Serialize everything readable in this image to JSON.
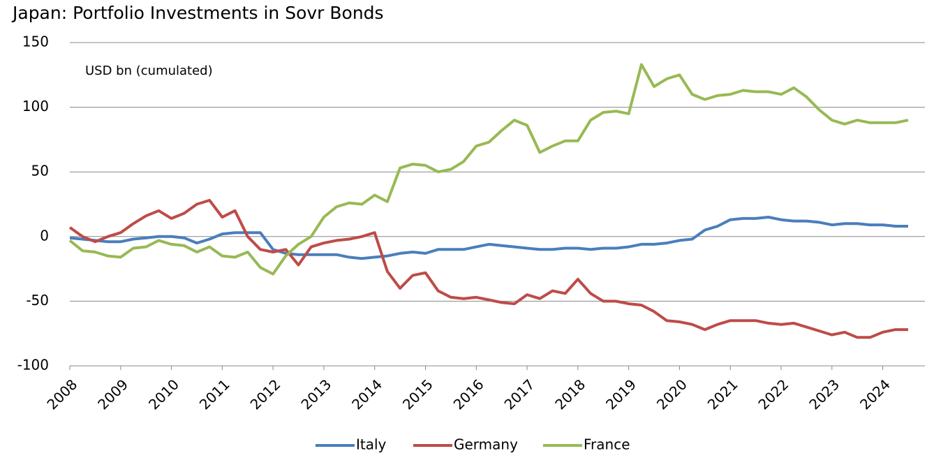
{
  "chart_data": {
    "type": "line",
    "title": "Japan: Portfolio Investments in Sovr Bonds",
    "annotation": "USD bn (cumulated)",
    "x": [
      2008,
      2008.25,
      2008.5,
      2008.75,
      2009,
      2009.25,
      2009.5,
      2009.75,
      2010,
      2010.25,
      2010.5,
      2010.75,
      2011,
      2011.25,
      2011.5,
      2011.75,
      2012,
      2012.25,
      2012.5,
      2012.75,
      2013,
      2013.25,
      2013.5,
      2013.75,
      2014,
      2014.25,
      2014.5,
      2014.75,
      2015,
      2015.25,
      2015.5,
      2015.75,
      2016,
      2016.25,
      2016.5,
      2016.75,
      2017,
      2017.25,
      2017.5,
      2017.75,
      2018,
      2018.25,
      2018.5,
      2018.75,
      2019,
      2019.25,
      2019.5,
      2019.75,
      2020,
      2020.25,
      2020.5,
      2020.75,
      2021,
      2021.25,
      2021.5,
      2021.75,
      2022,
      2022.25,
      2022.5,
      2022.75,
      2023,
      2023.25,
      2023.5,
      2023.75,
      2024,
      2024.25,
      2024.5
    ],
    "series": [
      {
        "name": "Italy",
        "color": "#4a7ebb",
        "values": [
          -1,
          -2,
          -3,
          -4,
          -4,
          -2,
          -1,
          0,
          0,
          -1,
          -5,
          -2,
          2,
          3,
          3,
          3,
          -10,
          -13,
          -14,
          -14,
          -14,
          -14,
          -16,
          -17,
          -16,
          -15,
          -13,
          -12,
          -13,
          -10,
          -10,
          -10,
          -8,
          -6,
          -7,
          -8,
          -9,
          -10,
          -10,
          -9,
          -9,
          -10,
          -9,
          -9,
          -8,
          -6,
          -6,
          -5,
          -3,
          -2,
          5,
          8,
          13,
          14,
          14,
          15,
          13,
          12,
          12,
          11,
          9,
          10,
          10,
          9,
          9,
          8,
          8
        ]
      },
      {
        "name": "Germany",
        "color": "#be4b48",
        "values": [
          7,
          0,
          -4,
          0,
          3,
          10,
          16,
          20,
          14,
          18,
          25,
          28,
          15,
          20,
          0,
          -10,
          -12,
          -10,
          -22,
          -8,
          -5,
          -3,
          -2,
          0,
          3,
          -27,
          -40,
          -30,
          -28,
          -42,
          -47,
          -48,
          -47,
          -49,
          -51,
          -52,
          -45,
          -48,
          -42,
          -44,
          -33,
          -44,
          -50,
          -50,
          -52,
          -53,
          -58,
          -65,
          -66,
          -68,
          -72,
          -68,
          -65,
          -65,
          -65,
          -67,
          -68,
          -67,
          -70,
          -73,
          -76,
          -74,
          -78,
          -78,
          -74,
          -72,
          -72
        ]
      },
      {
        "name": "France",
        "color": "#98b954",
        "values": [
          -3,
          -11,
          -12,
          -15,
          -16,
          -9,
          -8,
          -3,
          -6,
          -7,
          -12,
          -8,
          -15,
          -16,
          -12,
          -24,
          -29,
          -15,
          -6,
          0,
          15,
          23,
          26,
          25,
          32,
          27,
          53,
          56,
          55,
          50,
          52,
          58,
          70,
          73,
          82,
          90,
          86,
          65,
          70,
          74,
          74,
          90,
          96,
          97,
          95,
          133,
          116,
          122,
          125,
          110,
          106,
          109,
          110,
          113,
          112,
          112,
          110,
          115,
          108,
          98,
          90,
          87,
          90,
          88,
          88,
          88,
          90
        ]
      }
    ],
    "xlim": [
      2008,
      2024.83
    ],
    "xticks": [
      2008,
      2009,
      2010,
      2011,
      2012,
      2013,
      2014,
      2015,
      2016,
      2017,
      2018,
      2019,
      2020,
      2021,
      2022,
      2023,
      2024
    ],
    "ylim": [
      -100,
      150
    ],
    "yticks": [
      -100,
      -50,
      0,
      50,
      100,
      150
    ],
    "grid": true,
    "legend": "bottom"
  }
}
